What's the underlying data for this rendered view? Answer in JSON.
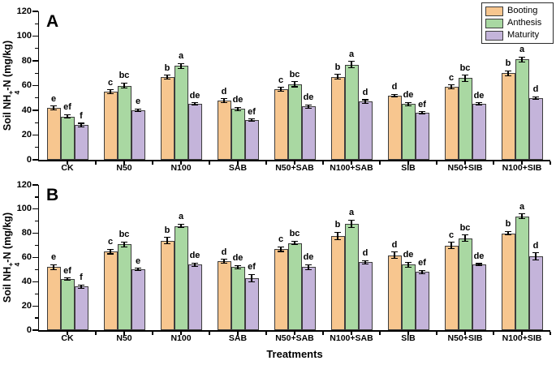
{
  "figure": {
    "xlabel": "Treatments",
    "ylabel_parts": {
      "prefix": "Soil NH",
      "sup": "+",
      "sub": "4",
      "suffix": "-N (mg/kg)"
    }
  },
  "colors": {
    "booting": "#F7C68F",
    "anthesis": "#A9D8A2",
    "maturity": "#C4B4DA",
    "bar_border": "#3d3d3d",
    "axis": "#000000"
  },
  "legend": {
    "position": "top-right",
    "items": [
      {
        "label": "Booting",
        "color": "#F7C68F"
      },
      {
        "label": "Anthesis",
        "color": "#A9D8A2"
      },
      {
        "label": "Maturity",
        "color": "#C4B4DA"
      }
    ]
  },
  "chart_data": [
    {
      "type": "bar",
      "panel": "A",
      "ylabel": "Soil NH4+-N (mg/kg)",
      "ylim": [
        0,
        120
      ],
      "yticks": [
        0,
        20,
        40,
        60,
        80,
        100,
        120
      ],
      "minor_tick_step": 10,
      "grid": false,
      "categories": [
        "CK",
        "N50",
        "N100",
        "SAB",
        "N50+SAB",
        "N100+SAB",
        "SIB",
        "N50+SIB",
        "N100+SIB"
      ],
      "series": [
        {
          "name": "Booting",
          "color": "#F7C68F",
          "values": [
            42,
            55,
            67,
            48,
            57,
            67,
            52,
            59,
            70
          ],
          "errors": [
            1.5,
            1.5,
            1.5,
            1.5,
            1.5,
            2,
            1,
            1.5,
            2
          ],
          "letters": [
            "e",
            "c",
            "b",
            "d",
            "c",
            "b",
            "d",
            "c",
            "b"
          ]
        },
        {
          "name": "Anthesis",
          "color": "#A9D8A2",
          "values": [
            35,
            60,
            76,
            41,
            61,
            77,
            45,
            66,
            81
          ],
          "errors": [
            1.5,
            2,
            2,
            1.5,
            2,
            2.5,
            1.5,
            2.5,
            2
          ],
          "letters": [
            "ef",
            "bc",
            "a",
            "de",
            "bc",
            "a",
            "de",
            "bc",
            "a"
          ]
        },
        {
          "name": "Maturity",
          "color": "#C4B4DA",
          "values": [
            28,
            40,
            45,
            32,
            43,
            47,
            38,
            45,
            50
          ],
          "errors": [
            1.5,
            1,
            1,
            1,
            1.5,
            1.5,
            1,
            1,
            1
          ],
          "letters": [
            "f",
            "e",
            "de",
            "ef",
            "de",
            "d",
            "ef",
            "de",
            "d"
          ]
        }
      ]
    },
    {
      "type": "bar",
      "panel": "B",
      "ylabel": "Soil NH4+-N (mg/kg)",
      "xlabel": "Treatments",
      "ylim": [
        0,
        120
      ],
      "yticks": [
        0,
        20,
        40,
        60,
        80,
        100,
        120
      ],
      "minor_tick_step": 10,
      "grid": false,
      "categories": [
        "CK",
        "N50",
        "N100",
        "SAB",
        "N50+SAB",
        "N100+SAB",
        "SIB",
        "N50+SIB",
        "N100+SIB"
      ],
      "series": [
        {
          "name": "Booting",
          "color": "#F7C68F",
          "values": [
            52,
            65,
            74,
            57,
            67,
            78,
            62,
            70,
            80
          ],
          "errors": [
            2,
            2,
            2.5,
            1.5,
            2,
            3,
            2.5,
            2.5,
            1.5
          ],
          "letters": [
            "e",
            "c",
            "b",
            "d",
            "c",
            "b",
            "d",
            "c",
            "b"
          ]
        },
        {
          "name": "Anthesis",
          "color": "#A9D8A2",
          "values": [
            42,
            71,
            86,
            52,
            72,
            88,
            54,
            76,
            94
          ],
          "errors": [
            1,
            2,
            1.5,
            1.5,
            1.5,
            3,
            2,
            2.5,
            2
          ],
          "letters": [
            "ef",
            "bc",
            "a",
            "de",
            "bc",
            "a",
            "de",
            "bc",
            "a"
          ]
        },
        {
          "name": "Maturity",
          "color": "#C4B4DA",
          "values": [
            36,
            50,
            54,
            43,
            52,
            56,
            48,
            54,
            61
          ],
          "errors": [
            1.5,
            1,
            1.5,
            3,
            2,
            1.5,
            1.5,
            1,
            3
          ],
          "letters": [
            "f",
            "e",
            "de",
            "ef",
            "de",
            "d",
            "ef",
            "de",
            "d"
          ]
        }
      ]
    }
  ]
}
